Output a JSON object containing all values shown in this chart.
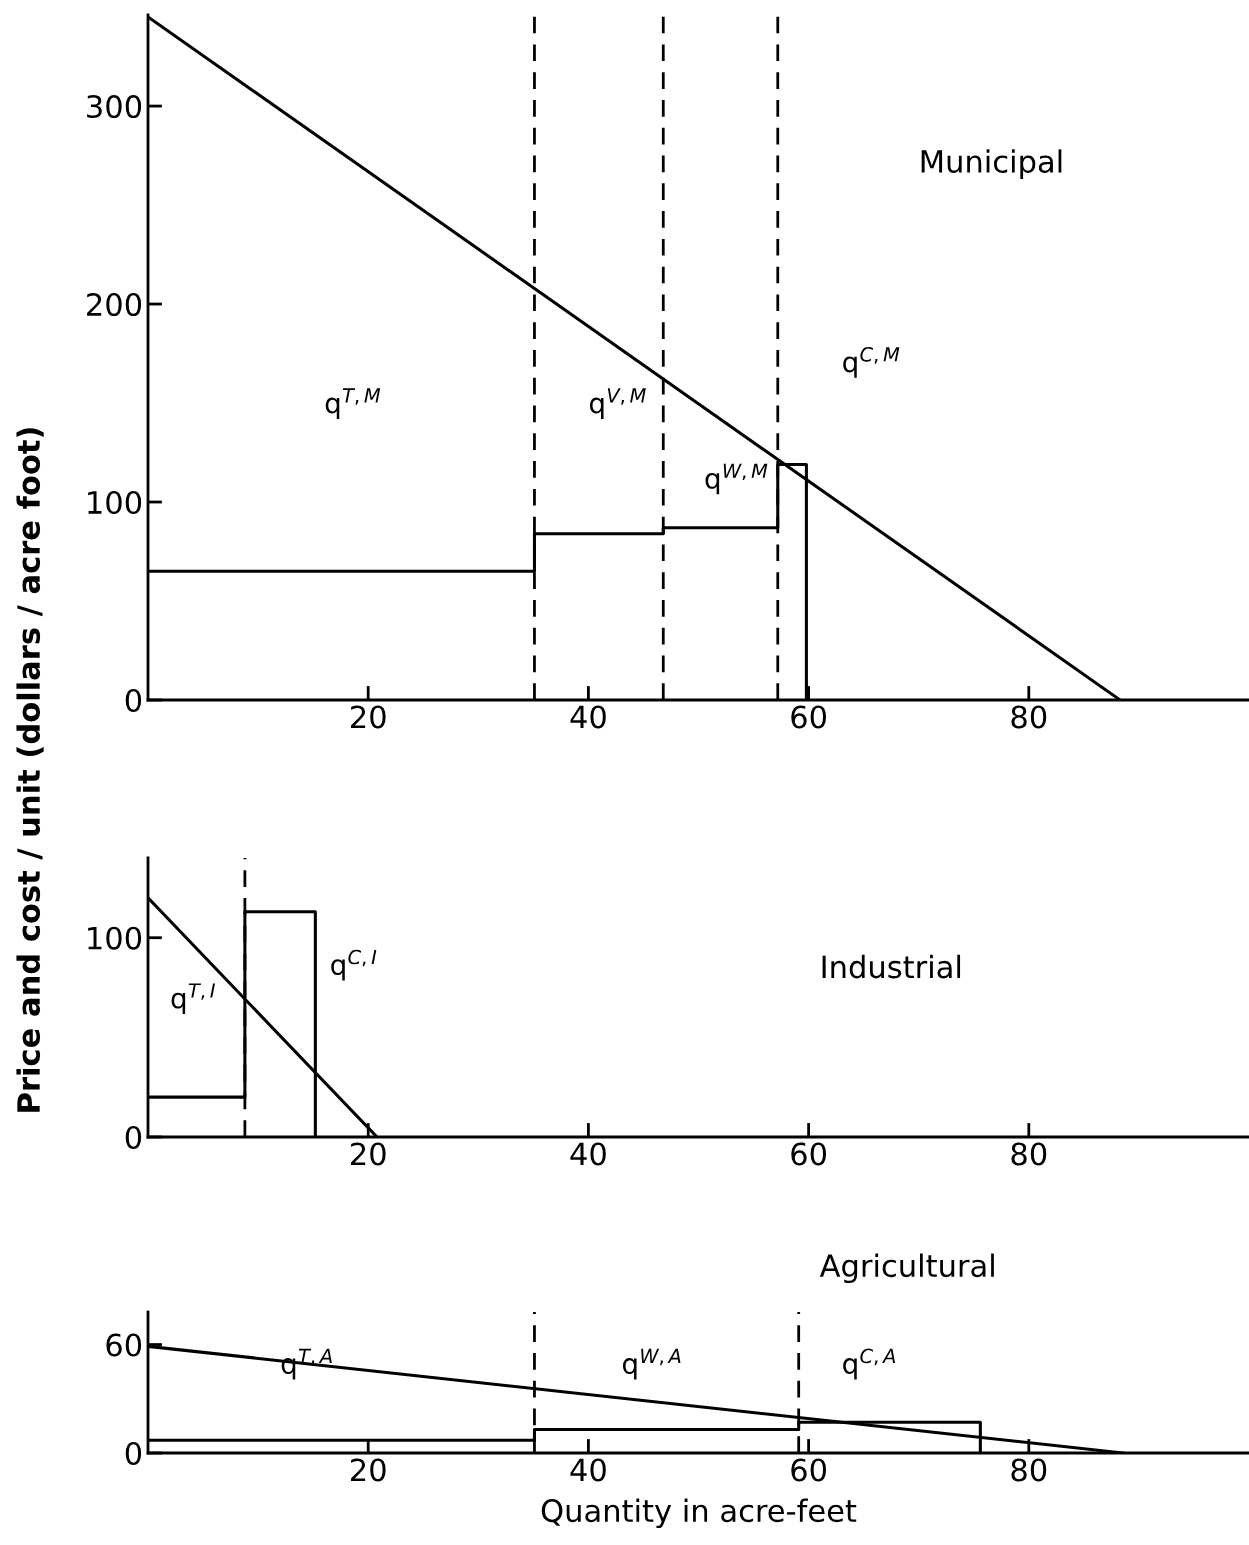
{
  "chart_data": [
    {
      "type": "line",
      "title": "Municipal",
      "xlim": [
        0,
        100
      ],
      "xticks": [
        20,
        40,
        60,
        80
      ],
      "ylim": [
        0,
        346
      ],
      "yticks": [
        0,
        100,
        200,
        300
      ],
      "grid": false,
      "legend": false,
      "marker": "none",
      "line_style": "solid",
      "series": [
        {
          "color": "#000000",
          "x": [
            0,
            88.3
          ],
          "values": [
            345,
            0
          ]
        },
        {
          "type": "step",
          "color": "#000000",
          "x": [
            0,
            35.1,
            46.8,
            57.2,
            59.8
          ],
          "values": [
            65,
            84,
            87,
            119,
            0
          ]
        }
      ],
      "ref_lines": [
        {
          "axis": "x",
          "value": 35.1,
          "line_style": "dashed",
          "color": "#000000"
        },
        {
          "axis": "x",
          "value": 46.8,
          "line_style": "dashed",
          "color": "#000000"
        },
        {
          "axis": "x",
          "value": 57.2,
          "line_style": "dashed",
          "color": "#000000"
        }
      ],
      "annotations": [
        "q$^{T,M}$",
        "q$^{V,M}$",
        "q$^{W,M}$",
        "q$^{C,M}$"
      ]
    },
    {
      "type": "line",
      "title": "Industrial",
      "ylabel": "Price and cost / unit (dollars / acre foot)",
      "xlim": [
        0,
        100
      ],
      "xticks": [
        20,
        40,
        60,
        80
      ],
      "ylim": [
        0,
        140
      ],
      "yticks": [
        0,
        100
      ],
      "grid": false,
      "legend": false,
      "marker": "none",
      "line_style": "solid",
      "series": [
        {
          "color": "#000000",
          "x": [
            0,
            20.8
          ],
          "values": [
            120,
            0
          ]
        },
        {
          "type": "step",
          "color": "#000000",
          "x": [
            0,
            8.8,
            15.2
          ],
          "values": [
            20,
            113,
            0
          ]
        }
      ],
      "ref_lines": [
        {
          "axis": "x",
          "value": 8.8,
          "line_style": "dashed",
          "color": "#000000"
        }
      ],
      "annotations": [
        "q$^{T,I}$",
        "q$^{C,I}$"
      ]
    },
    {
      "type": "line",
      "title": "Agricultural",
      "xlabel": "Quantity in acre-feet",
      "xlim": [
        0,
        100
      ],
      "xticks": [
        20,
        40,
        60,
        80
      ],
      "ylim": [
        0,
        78
      ],
      "yticks": [
        0,
        60
      ],
      "grid": false,
      "legend": false,
      "marker": "none",
      "line_style": "solid",
      "series": [
        {
          "color": "#000000",
          "x": [
            0,
            88.6
          ],
          "values": [
            59,
            0
          ]
        },
        {
          "type": "step",
          "color": "#000000",
          "x": [
            0,
            35.1,
            59.1,
            75.6
          ],
          "values": [
            7,
            13,
            17,
            0
          ]
        }
      ],
      "ref_lines": [
        {
          "axis": "x",
          "value": 35.1,
          "line_style": "dashed",
          "color": "#000000"
        },
        {
          "axis": "x",
          "value": 59.1,
          "line_style": "dashed",
          "color": "#000000"
        }
      ],
      "annotations": [
        "q$^{T,A}$",
        "q$^{W,A}$",
        "q$^{C,A}$"
      ]
    }
  ]
}
